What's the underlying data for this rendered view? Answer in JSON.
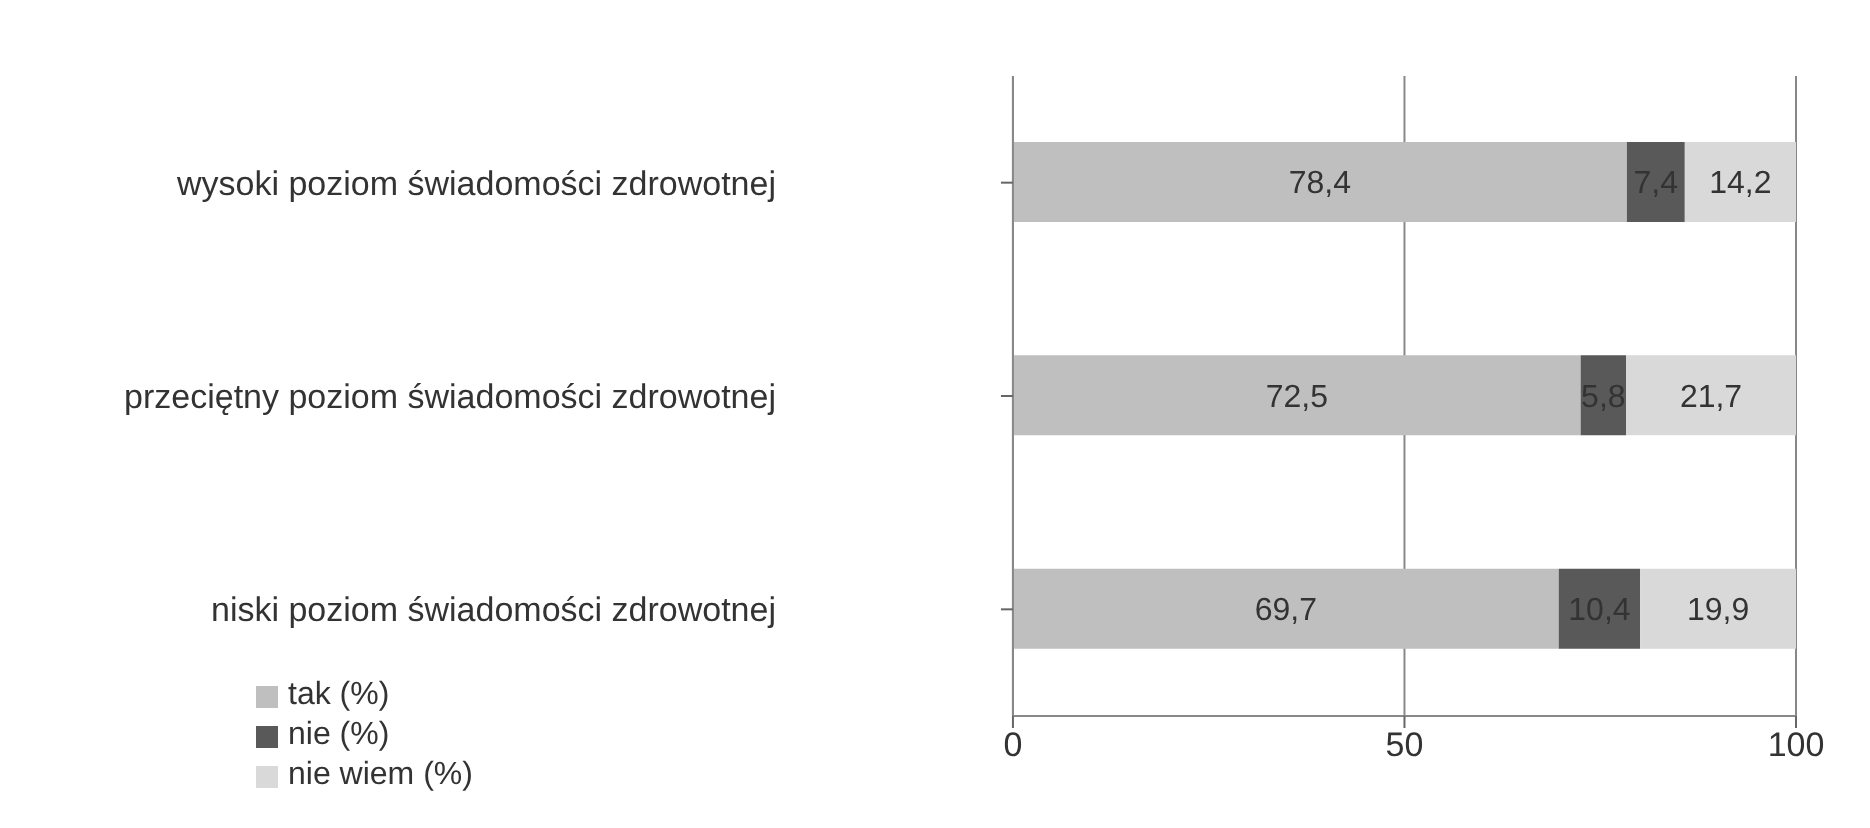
{
  "chart_data": {
    "type": "bar",
    "orientation": "horizontal",
    "stacked": true,
    "categories": [
      "wysoki poziom świadomości zdrowotnej",
      "przeciętny poziom świadomości zdrowotnej",
      "niski poziom świadomości zdrowotnej"
    ],
    "series": [
      {
        "name": "tak (%)",
        "color": "#bfbfbf",
        "values": [
          78.4,
          72.5,
          69.7
        ],
        "value_labels": [
          "78,4",
          "72,5",
          "69,7"
        ]
      },
      {
        "name": "nie (%)",
        "color": "#595959",
        "values": [
          7.4,
          5.8,
          10.4
        ],
        "value_labels": [
          "7,4",
          "5,8",
          "10,4"
        ]
      },
      {
        "name": "nie wiem (%)",
        "color": "#d9d9d9",
        "values": [
          14.2,
          21.7,
          19.9
        ],
        "value_labels": [
          "14,2",
          "21,7",
          "19,9"
        ]
      }
    ],
    "xlim": [
      0,
      100
    ],
    "xticks": [
      0,
      50,
      100
    ],
    "grid": "x",
    "legend": "bottom left"
  }
}
